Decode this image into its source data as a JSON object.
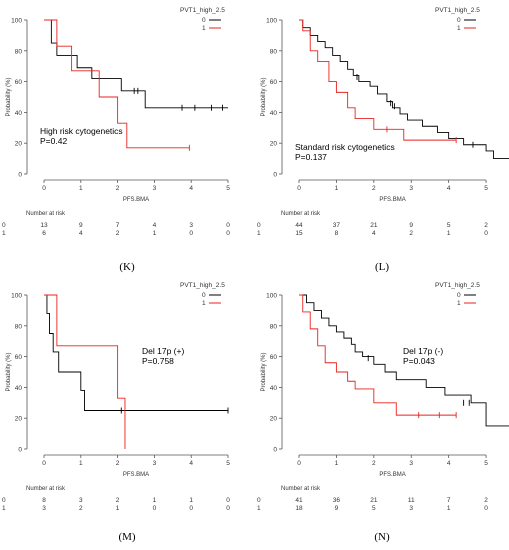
{
  "colors": {
    "group0": "#000000",
    "group1": "#e8231f",
    "axis": "#555555",
    "text": "#333333"
  },
  "chart_data": [
    {
      "panel": "K",
      "type": "line",
      "subtype": "kaplan-meier",
      "legend_title": "PVT1_high_2.5",
      "legend_placement": "top-right",
      "xlabel": "PFS.BMA",
      "ylabel": "Probability (%)",
      "xlim": [
        0,
        5
      ],
      "ylim": [
        0,
        100
      ],
      "xticks": [
        0,
        1,
        2,
        3,
        4,
        5
      ],
      "yticks": [
        0,
        20,
        40,
        60,
        80,
        100
      ],
      "annotation": [
        "High risk cytogenetics",
        "P=0.42"
      ],
      "risk_title": "Number at risk",
      "series": [
        {
          "name": "0",
          "steps": [
            [
              0,
              100
            ],
            [
              0.2,
              85
            ],
            [
              0.35,
              77
            ],
            [
              0.9,
              69
            ],
            [
              1.3,
              62
            ],
            [
              2.1,
              54
            ],
            [
              2.6,
              54
            ],
            [
              2.75,
              43
            ],
            [
              5,
              43
            ]
          ],
          "censor": [
            [
              2.45,
              54
            ],
            [
              2.55,
              54
            ],
            [
              3.75,
              43
            ],
            [
              4.1,
              43
            ],
            [
              4.55,
              43
            ],
            [
              4.85,
              43
            ]
          ],
          "at_risk": [
            13,
            9,
            7,
            4,
            3,
            0
          ]
        },
        {
          "name": "1",
          "steps": [
            [
              0,
              100
            ],
            [
              0.35,
              83
            ],
            [
              0.75,
              67
            ],
            [
              1.5,
              50
            ],
            [
              2.0,
              33
            ],
            [
              2.25,
              17
            ],
            [
              3.95,
              17
            ]
          ],
          "censor": [
            [
              3.95,
              17
            ]
          ],
          "at_risk": [
            6,
            4,
            2,
            1,
            0,
            0
          ]
        }
      ]
    },
    {
      "panel": "L",
      "type": "line",
      "subtype": "kaplan-meier",
      "legend_title": "PVT1_high_2.5",
      "legend_placement": "top-right",
      "xlabel": "PFS.BMA",
      "ylabel": "Probability (%)",
      "xlim": [
        0,
        5.8
      ],
      "ylim": [
        0,
        100
      ],
      "xticks": [
        0,
        1,
        2,
        3,
        4,
        5
      ],
      "yticks": [
        0,
        20,
        40,
        60,
        80,
        100
      ],
      "annotation": [
        "Standard risk cytogenetics",
        "P=0.137"
      ],
      "risk_title": "Number at risk",
      "series": [
        {
          "name": "0",
          "steps": [
            [
              0,
              100
            ],
            [
              0.1,
              95
            ],
            [
              0.3,
              90
            ],
            [
              0.5,
              86
            ],
            [
              0.7,
              82
            ],
            [
              0.9,
              77
            ],
            [
              1.1,
              73
            ],
            [
              1.3,
              68
            ],
            [
              1.45,
              64
            ],
            [
              1.6,
              60
            ],
            [
              1.9,
              57
            ],
            [
              2.1,
              52
            ],
            [
              2.35,
              47
            ],
            [
              2.5,
              43
            ],
            [
              2.7,
              39
            ],
            [
              2.9,
              35
            ],
            [
              3.3,
              31
            ],
            [
              3.7,
              27
            ],
            [
              4.0,
              23
            ],
            [
              4.4,
              19
            ],
            [
              5.0,
              15
            ],
            [
              5.2,
              10
            ],
            [
              5.75,
              10
            ]
          ],
          "censor": [
            [
              1.55,
              63
            ],
            [
              2.45,
              46
            ],
            [
              2.55,
              44
            ],
            [
              4.65,
              19
            ],
            [
              5.75,
              10
            ]
          ],
          "at_risk": [
            44,
            37,
            21,
            9,
            5,
            2
          ]
        },
        {
          "name": "1",
          "steps": [
            [
              0,
              100
            ],
            [
              0.1,
              93
            ],
            [
              0.3,
              80
            ],
            [
              0.5,
              73
            ],
            [
              0.8,
              60
            ],
            [
              1.0,
              53
            ],
            [
              1.3,
              43
            ],
            [
              1.5,
              36
            ],
            [
              2.0,
              29
            ],
            [
              2.8,
              22
            ],
            [
              4.2,
              22
            ]
          ],
          "censor": [
            [
              2.35,
              29
            ],
            [
              4.2,
              22
            ]
          ],
          "at_risk": [
            15,
            8,
            4,
            2,
            1,
            0
          ]
        }
      ]
    },
    {
      "panel": "M",
      "type": "line",
      "subtype": "kaplan-meier",
      "legend_title": "PVT1_high_2.5",
      "legend_placement": "top-right",
      "xlabel": "PFS.BMA",
      "ylabel": "Probability (%)",
      "xlim": [
        0,
        5
      ],
      "ylim": [
        0,
        100
      ],
      "xticks": [
        0,
        1,
        2,
        3,
        4,
        5
      ],
      "yticks": [
        0,
        20,
        40,
        60,
        80,
        100
      ],
      "annotation": [
        "Del 17p (+)",
        "P=0.758"
      ],
      "risk_title": "Number at risk",
      "series": [
        {
          "name": "0",
          "steps": [
            [
              0,
              100
            ],
            [
              0.08,
              88
            ],
            [
              0.15,
              75
            ],
            [
              0.25,
              63
            ],
            [
              0.4,
              50
            ],
            [
              1.0,
              38
            ],
            [
              1.1,
              25
            ],
            [
              5,
              25
            ]
          ],
          "censor": [
            [
              2.1,
              25
            ],
            [
              5,
              25
            ]
          ],
          "at_risk": [
            8,
            3,
            2,
            1,
            1,
            0
          ]
        },
        {
          "name": "1",
          "steps": [
            [
              0,
              100
            ],
            [
              0.35,
              67
            ],
            [
              2.0,
              33
            ],
            [
              2.2,
              0
            ]
          ],
          "censor": [],
          "at_risk": [
            3,
            2,
            1,
            0,
            0,
            0
          ]
        }
      ]
    },
    {
      "panel": "N",
      "type": "line",
      "subtype": "kaplan-meier",
      "legend_title": "PVT1_high_2.5",
      "legend_placement": "top-right",
      "xlabel": "PFS.BMA",
      "ylabel": "Probability (%)",
      "xlim": [
        0,
        5.8
      ],
      "ylim": [
        0,
        100
      ],
      "xticks": [
        0,
        1,
        2,
        3,
        4,
        5
      ],
      "yticks": [
        0,
        20,
        40,
        60,
        80,
        100
      ],
      "annotation": [
        "Del 17p (-)",
        "P=0.043"
      ],
      "risk_title": "Number at risk",
      "series": [
        {
          "name": "0",
          "steps": [
            [
              0,
              100
            ],
            [
              0.2,
              95
            ],
            [
              0.4,
              90
            ],
            [
              0.6,
              85
            ],
            [
              0.8,
              80
            ],
            [
              1.0,
              76
            ],
            [
              1.2,
              72
            ],
            [
              1.4,
              68
            ],
            [
              1.5,
              63
            ],
            [
              1.7,
              60
            ],
            [
              2.0,
              55
            ],
            [
              2.3,
              50
            ],
            [
              2.6,
              45
            ],
            [
              3.4,
              40
            ],
            [
              3.9,
              35
            ],
            [
              4.6,
              30
            ],
            [
              5.0,
              15
            ],
            [
              5.7,
              15
            ]
          ],
          "censor": [
            [
              1.85,
              59
            ],
            [
              4.4,
              30
            ],
            [
              4.55,
              30
            ],
            [
              5.7,
              15
            ]
          ],
          "at_risk": [
            41,
            36,
            21,
            11,
            7,
            2
          ]
        },
        {
          "name": "1",
          "steps": [
            [
              0,
              100
            ],
            [
              0.1,
              89
            ],
            [
              0.3,
              78
            ],
            [
              0.5,
              67
            ],
            [
              0.7,
              56
            ],
            [
              1.0,
              50
            ],
            [
              1.3,
              44
            ],
            [
              1.5,
              39
            ],
            [
              2.0,
              30
            ],
            [
              2.6,
              22
            ],
            [
              4.2,
              22
            ]
          ],
          "censor": [
            [
              3.2,
              22
            ],
            [
              3.75,
              22
            ],
            [
              4.2,
              22
            ]
          ],
          "at_risk": [
            18,
            9,
            5,
            3,
            1,
            0
          ]
        }
      ]
    }
  ],
  "panel_letters": [
    "(K)",
    "(L)",
    "(M)",
    "(N)"
  ]
}
